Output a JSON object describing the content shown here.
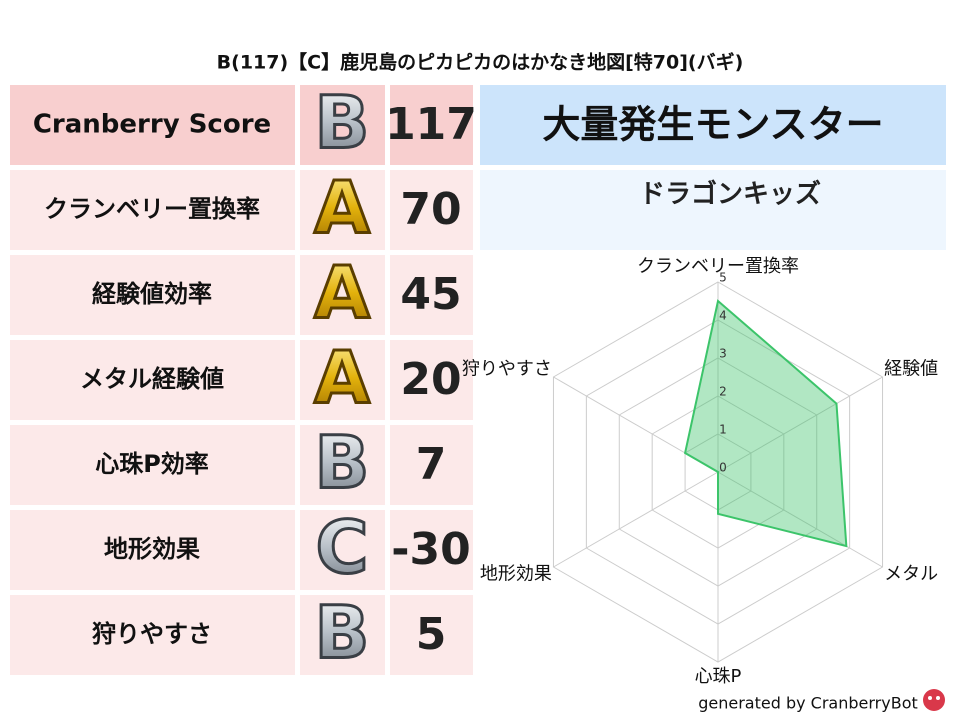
{
  "title": "B(117)【C】鹿児島のピカピカのはかなき地図[特70](バギ)",
  "table": {
    "rows": [
      [
        "Cranberry Score",
        "B",
        117
      ],
      [
        "クランベリー置換率",
        "A",
        70
      ],
      [
        "経験値効率",
        "A",
        45
      ],
      [
        "メタル経験値",
        "A",
        20
      ],
      [
        "心珠P効率",
        "B",
        7
      ],
      [
        "地形効果",
        "C",
        -30
      ],
      [
        "狩りやすさ",
        "B",
        5
      ]
    ]
  },
  "monster": {
    "heading": "大量発生モンスター",
    "name": "ドラゴンキッズ"
  },
  "chart_data": {
    "type": "radar",
    "axes": [
      "クランベリー置換率",
      "経験値",
      "メタル",
      "心珠P",
      "地形効果",
      "狩りやすさ"
    ],
    "values": [
      4.5,
      3.6,
      3.9,
      1.1,
      0,
      1.0
    ],
    "rlim": [
      0,
      5
    ],
    "rticks": [
      0,
      1,
      2,
      3,
      4,
      5
    ],
    "color": "#3cc46a"
  },
  "footer": "generated by CranberryBot"
}
